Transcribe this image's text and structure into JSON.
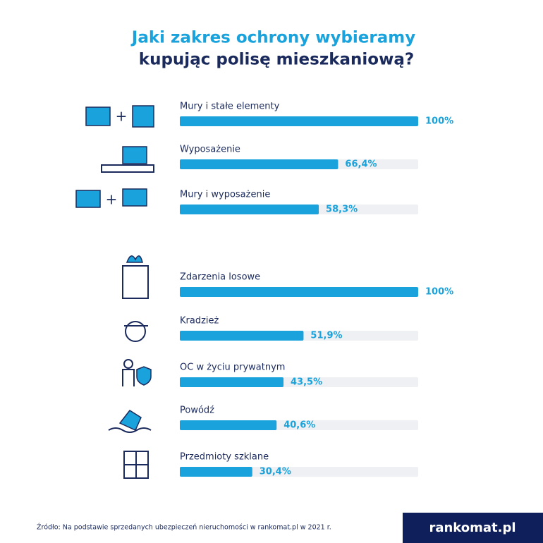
{
  "chart_data": {
    "type": "hbar",
    "title": "Jaki zakres ochrony wybieramy",
    "subtitle": "kupując polisę mieszkaniową?",
    "categories": [
      "Mury i stałe elementy",
      "Wyposażenie",
      "Mury i wyposażenie",
      "Zdarzenia losowe",
      "Kradzież",
      "OC w życiu prywatnym",
      "Powódź",
      "Przedmioty szklane"
    ],
    "values": [
      100,
      66.4,
      58.3,
      100,
      51.9,
      43.5,
      40.6,
      30.4
    ],
    "value_labels": [
      "100%",
      "66,4%",
      "58,3%",
      "100%",
      "51,9%",
      "43,5%",
      "40,6%",
      "30,4%"
    ],
    "color": "#19a2dc",
    "xlim": [
      0,
      100
    ],
    "source": "Źródło: Na podstawie sprzedanych ubezpieczeń nieruchomości w rankomat.pl w 2021 r.",
    "brand": "rankomat.pl"
  }
}
